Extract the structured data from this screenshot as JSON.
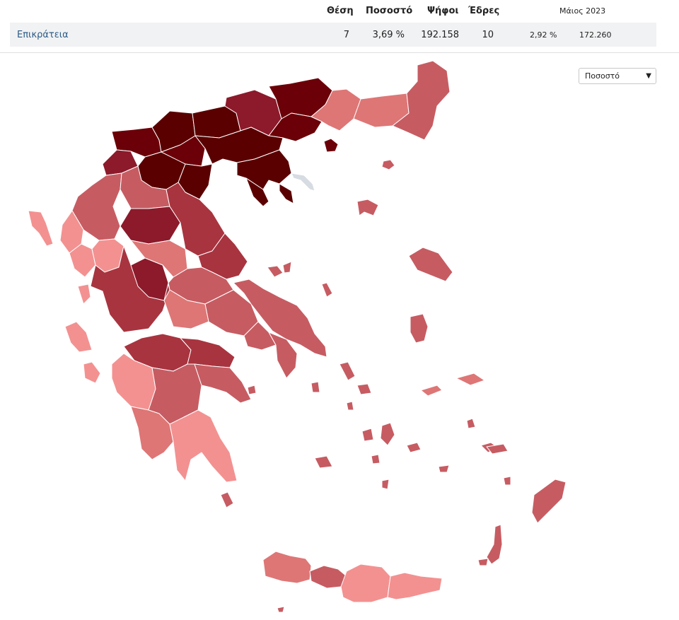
{
  "table": {
    "headers": {
      "rank": "Θέση",
      "percent": "Ποσοστό",
      "votes": "Ψήφοι",
      "seats": "Έδρες",
      "previous": "Μάιος 2023"
    },
    "row": {
      "party": "Επικράτεια",
      "rank": "7",
      "percent": "3,69 %",
      "votes": "192.158",
      "seats": "10",
      "prev_percent": "2,92 %",
      "prev_votes": "172.260"
    }
  },
  "metric_select": {
    "selected": "Ποσοστό",
    "icon": "chevron-down-icon"
  },
  "map": {
    "colors": {
      "darkest": "#5a0000",
      "very_dark": "#6b0008",
      "dark": "#8c1a2b",
      "medium_dark": "#a8343f",
      "medium": "#c65c62",
      "medium_light": "#de7676",
      "light": "#f39191",
      "neutral": "#d7dbe2"
    }
  }
}
